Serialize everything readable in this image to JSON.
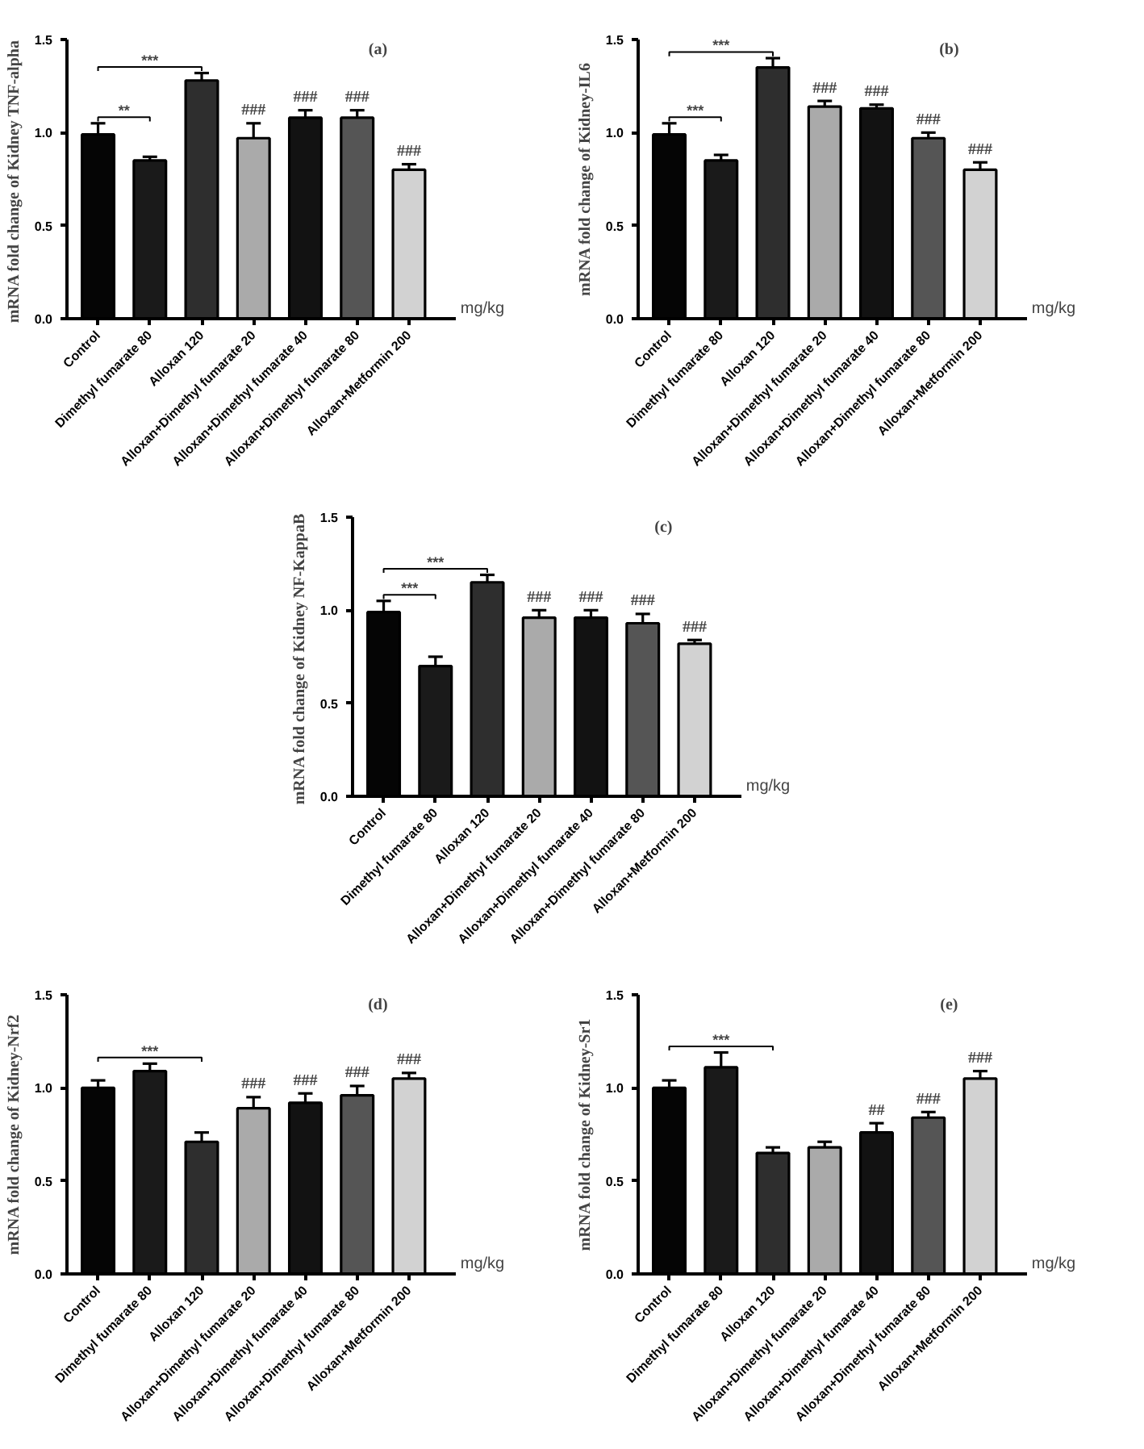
{
  "chart_data": [
    {
      "type": "bar",
      "title": "(a)",
      "ylabel": "mRNA fold change of Kidney  TNF-alpha",
      "categories": [
        "Control",
        "Dimethyl fumarate 80",
        "Alloxan 120",
        "Alloxan+Dimethyl fumarate 20",
        "Alloxan+Dimethyl fumarate 40",
        "Alloxan+Dimethyl fumarate 80",
        "Alloxan+Metformin 200"
      ],
      "values": [
        0.99,
        0.85,
        1.28,
        0.97,
        1.08,
        1.08,
        0.8
      ],
      "errors": [
        [
          0.99,
          1.05
        ],
        [
          0.85,
          0.87
        ],
        [
          1.28,
          1.32
        ],
        [
          0.97,
          1.05
        ],
        [
          1.08,
          1.12
        ],
        [
          1.08,
          1.12
        ],
        [
          0.8,
          0.83
        ]
      ],
      "colors": [
        "#050505",
        "#1a1a1a",
        "#2e2e2e",
        "#aaaaaa",
        "#121212",
        "#555555",
        "#d2d2d2"
      ],
      "ylim": [
        0,
        1.5
      ],
      "yticks": [
        {
          "value": 0,
          "label": "0.0"
        },
        {
          "value": 0.5,
          "label": "0.5"
        },
        {
          "value": 1,
          "label": "1.0"
        },
        {
          "value": 1.5,
          "label": "1.5"
        }
      ],
      "grid": false,
      "annotations": [
        "***",
        "**",
        "mg/kg",
        {
          "text": "###",
          "x": "Alloxan+Dimethyl fumarate 20",
          "y": 1.07
        },
        {
          "text": "###",
          "x": "Alloxan+Dimethyl fumarate 40",
          "y": 1.14
        },
        {
          "text": "###",
          "x": "Alloxan+Dimethyl fumarate 80",
          "y": 1.14
        },
        {
          "text": "###",
          "x": "Alloxan+Metformin 200",
          "y": 0.85
        }
      ]
    },
    {
      "type": "bar",
      "title": "(b)",
      "ylabel": "mRNA fold change of Kidney-IL6",
      "categories": [
        "Control",
        "Dimethyl fumarate 80",
        "Alloxan 120",
        "Alloxan+Dimethyl fumarate 20",
        "Alloxan+Dimethyl fumarate 40",
        "Alloxan+Dimethyl fumarate 80",
        "Alloxan+Metformin 200"
      ],
      "values": [
        0.99,
        0.85,
        1.35,
        1.14,
        1.13,
        0.97,
        0.8
      ],
      "errors": [
        [
          0.99,
          1.05
        ],
        [
          0.85,
          0.88
        ],
        [
          1.35,
          1.4
        ],
        [
          1.14,
          1.17
        ],
        [
          1.13,
          1.15
        ],
        [
          0.97,
          1.0
        ],
        [
          0.8,
          0.84
        ]
      ],
      "colors": [
        "#050505",
        "#1a1a1a",
        "#2e2e2e",
        "#aaaaaa",
        "#121212",
        "#555555",
        "#d2d2d2"
      ],
      "ylim": [
        0,
        1.5
      ],
      "yticks": [
        {
          "value": 0,
          "label": "0.0"
        },
        {
          "value": 0.5,
          "label": "0.5"
        },
        {
          "value": 1,
          "label": "1.0"
        },
        {
          "value": 1.5,
          "label": "1.5"
        }
      ],
      "grid": false,
      "annotations": [
        "***",
        "***",
        "mg/kg",
        {
          "text": "###",
          "x": "Alloxan+Dimethyl fumarate 20",
          "y": 1.19
        },
        {
          "text": "###",
          "x": "Alloxan+Dimethyl fumarate 40",
          "y": 1.17
        },
        {
          "text": "###",
          "x": "Alloxan+Dimethyl fumarate 80",
          "y": 1.02
        },
        {
          "text": "###",
          "x": "Alloxan+Metformin 200",
          "y": 0.86
        }
      ]
    },
    {
      "type": "bar",
      "title": "(c)",
      "ylabel": "mRNA fold change of Kidney  NF-KappaB",
      "categories": [
        "Control",
        "Dimethyl fumarate 80",
        "Alloxan 120",
        "Alloxan+Dimethyl fumarate 20",
        "Alloxan+Dimethyl fumarate 40",
        "Alloxan+Dimethyl fumarate 80",
        "Alloxan+Metformin 200"
      ],
      "values": [
        0.99,
        0.7,
        1.15,
        0.96,
        0.96,
        0.93,
        0.82
      ],
      "errors": [
        [
          0.99,
          1.05
        ],
        [
          0.7,
          0.75
        ],
        [
          1.15,
          1.19
        ],
        [
          0.96,
          1.0
        ],
        [
          0.96,
          1.0
        ],
        [
          0.93,
          0.98
        ],
        [
          0.82,
          0.84
        ]
      ],
      "colors": [
        "#050505",
        "#1a1a1a",
        "#2e2e2e",
        "#aaaaaa",
        "#121212",
        "#555555",
        "#d2d2d2"
      ],
      "ylim": [
        0,
        1.5
      ],
      "yticks": [
        {
          "value": 0,
          "label": "0.0"
        },
        {
          "value": 0.5,
          "label": "0.5"
        },
        {
          "value": 1,
          "label": "1.0"
        },
        {
          "value": 1.5,
          "label": "1.5"
        }
      ],
      "grid": false,
      "annotations": [
        "***",
        "***",
        "mg/kg",
        {
          "text": "###",
          "x": "Alloxan+Dimethyl fumarate 20",
          "y": 1.02
        },
        {
          "text": "###",
          "x": "Alloxan+Dimethyl fumarate 40",
          "y": 1.02
        },
        {
          "text": "###",
          "x": "Alloxan+Dimethyl fumarate 80",
          "y": 1.0
        },
        {
          "text": "###",
          "x": "Alloxan+Metformin 200",
          "y": 0.86
        }
      ]
    },
    {
      "type": "bar",
      "title": "(d)",
      "ylabel": "mRNA fold change of Kidney-Nrf2",
      "categories": [
        "Control",
        "Dimethyl fumarate 80",
        "Alloxan 120",
        "Alloxan+Dimethyl fumarate 20",
        "Alloxan+Dimethyl fumarate 40",
        "Alloxan+Dimethyl fumarate 80",
        "Alloxan+Metformin 200"
      ],
      "values": [
        1.0,
        1.09,
        0.71,
        0.89,
        0.92,
        0.96,
        1.05
      ],
      "errors": [
        [
          1.0,
          1.04
        ],
        [
          1.09,
          1.13
        ],
        [
          0.71,
          0.76
        ],
        [
          0.89,
          0.95
        ],
        [
          0.92,
          0.97
        ],
        [
          0.96,
          1.01
        ],
        [
          1.05,
          1.08
        ]
      ],
      "colors": [
        "#050505",
        "#1a1a1a",
        "#2e2e2e",
        "#aaaaaa",
        "#121212",
        "#555555",
        "#d2d2d2"
      ],
      "ylim": [
        0,
        1.5
      ],
      "yticks": [
        {
          "value": 0,
          "label": "0.0"
        },
        {
          "value": 0.5,
          "label": "0.5"
        },
        {
          "value": 1,
          "label": "1.0"
        },
        {
          "value": 1.5,
          "label": "1.5"
        }
      ],
      "grid": false,
      "annotations": [
        "***",
        "mg/kg",
        {
          "text": "###",
          "x": "Alloxan+Dimethyl fumarate 20",
          "y": 0.97
        },
        {
          "text": "###",
          "x": "Alloxan+Dimethyl fumarate 40",
          "y": 0.99
        },
        {
          "text": "###",
          "x": "Alloxan+Dimethyl fumarate 80",
          "y": 1.03
        },
        {
          "text": "###",
          "x": "Alloxan+Metformin 200",
          "y": 1.1
        }
      ]
    },
    {
      "type": "bar",
      "title": "(e)",
      "ylabel": "mRNA fold change of Kidney-Sr1",
      "categories": [
        "Control",
        "Dimethyl fumarate 80",
        "Alloxan 120",
        "Alloxan+Dimethyl fumarate 20",
        "Alloxan+Dimethyl fumarate 40",
        "Alloxan+Dimethyl fumarate 80",
        "Alloxan+Metformin 200"
      ],
      "values": [
        1.0,
        1.11,
        0.65,
        0.68,
        0.76,
        0.84,
        1.05
      ],
      "errors": [
        [
          1.0,
          1.04
        ],
        [
          1.11,
          1.19
        ],
        [
          0.65,
          0.68
        ],
        [
          0.68,
          0.71
        ],
        [
          0.76,
          0.81
        ],
        [
          0.84,
          0.87
        ],
        [
          1.05,
          1.09
        ]
      ],
      "colors": [
        "#050505",
        "#1a1a1a",
        "#2e2e2e",
        "#aaaaaa",
        "#121212",
        "#555555",
        "#d2d2d2"
      ],
      "ylim": [
        0,
        1.5
      ],
      "yticks": [
        {
          "value": 0,
          "label": "0.0"
        },
        {
          "value": 0.5,
          "label": "0.5"
        },
        {
          "value": 1,
          "label": "1.0"
        },
        {
          "value": 1.5,
          "label": "1.5"
        }
      ],
      "grid": false,
      "annotations": [
        "***",
        "mg/kg",
        {
          "text": "##",
          "x": "Alloxan+Dimethyl fumarate 40",
          "y": 0.83
        },
        {
          "text": "###",
          "x": "Alloxan+Dimethyl fumarate 80",
          "y": 0.89
        },
        {
          "text": "###",
          "x": "Alloxan+Metformin 200",
          "y": 1.11
        }
      ]
    }
  ]
}
